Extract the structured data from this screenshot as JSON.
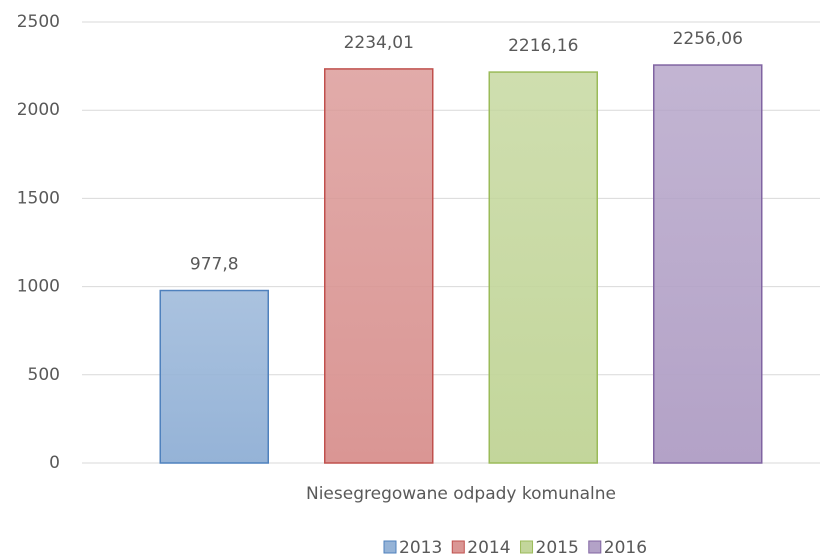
{
  "chart_data": {
    "type": "bar",
    "categories": [
      "Niesegregowane odpady komunalne"
    ],
    "series": [
      {
        "name": "2013",
        "color": "#95b3d7",
        "edgecolor": "#4f81bd",
        "values": [
          977.8
        ],
        "value_labels": [
          "977,8"
        ]
      },
      {
        "name": "2014",
        "color": "#da9694",
        "edgecolor": "#c0504d",
        "values": [
          2234.01
        ],
        "value_labels": [
          "2234,01"
        ]
      },
      {
        "name": "2015",
        "color": "#c3d69b",
        "edgecolor": "#9bbb59",
        "values": [
          2216.16
        ],
        "value_labels": [
          "2216,16"
        ]
      },
      {
        "name": "2016",
        "color": "#b3a2c7",
        "edgecolor": "#8064a2",
        "values": [
          2256.06
        ],
        "value_labels": [
          "2256,06"
        ]
      }
    ],
    "ylim": [
      0,
      2500
    ],
    "yticks": [
      0,
      500,
      1000,
      1500,
      2000,
      2500
    ],
    "grid": true,
    "legend": "bottom"
  }
}
